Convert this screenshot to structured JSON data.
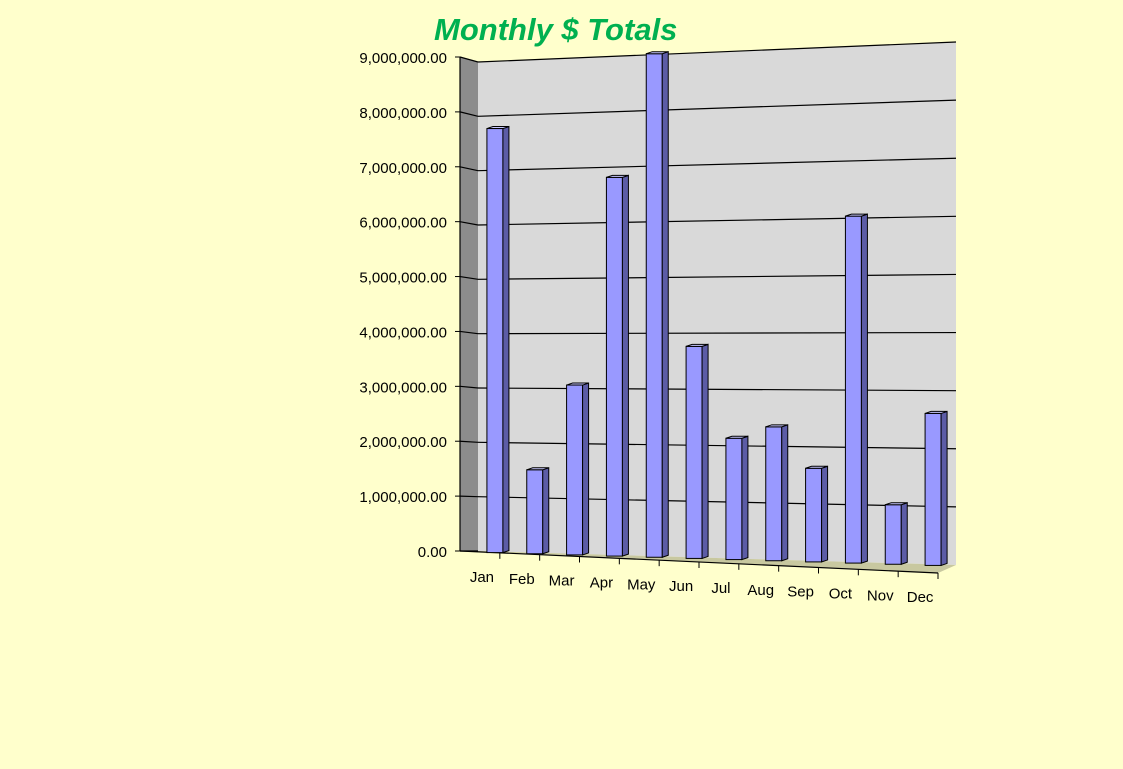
{
  "chart_data": {
    "type": "bar",
    "title": "Monthly $ Totals",
    "categories": [
      "Jan",
      "Feb",
      "Mar",
      "Apr",
      "May",
      "Jun",
      "Jul",
      "Aug",
      "Sep",
      "Oct",
      "Nov",
      "Dec"
    ],
    "series": [
      {
        "values": [
          7800000,
          1550000,
          3100000,
          6850000,
          9050000,
          3800000,
          2170000,
          2380000,
          1660000,
          6070000,
          1050000,
          2640000
        ]
      }
    ],
    "yticks": [
      "0.00",
      "1,000,000.00",
      "2,000,000.00",
      "3,000,000.00",
      "4,000,000.00",
      "5,000,000.00",
      "6,000,000.00",
      "7,000,000.00",
      "8,000,000.00",
      "9,000,000.00"
    ],
    "ylim": [
      0,
      9000000
    ],
    "grid": true,
    "legend": "none",
    "colors": {
      "bar_front": "#9999ff",
      "bar_side": "#5c5ca6",
      "bar_top": "#c8c8ff",
      "wall": "#d9d9d9",
      "side_wall": "#8c8c8c",
      "floor": "#c8c8a0",
      "title": "#00b050",
      "background": "#ffffcc"
    }
  }
}
